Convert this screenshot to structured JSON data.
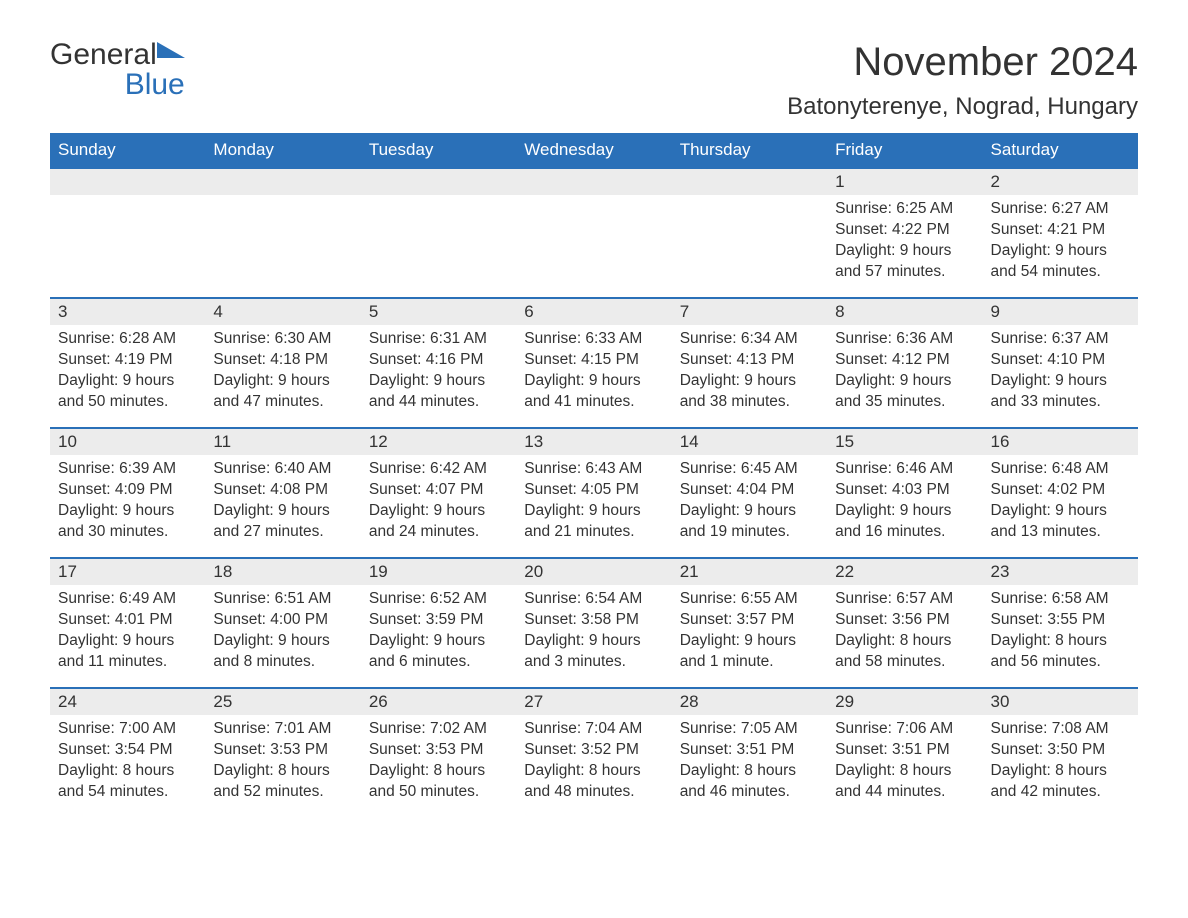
{
  "logo": {
    "text1": "General",
    "text2": "Blue",
    "triangle_color": "#2a70b8"
  },
  "title": "November 2024",
  "location": "Batonyterenye, Nograd, Hungary",
  "colors": {
    "header_bg": "#2a70b8",
    "header_text": "#ffffff",
    "daynum_bg": "#ececec",
    "body_text": "#333333",
    "row_border": "#2a70b8",
    "page_bg": "#ffffff"
  },
  "type": "calendar-table",
  "typography": {
    "title_fontsize": 40,
    "location_fontsize": 24,
    "dayheader_fontsize": 17,
    "daynum_fontsize": 17,
    "body_fontsize": 15.5,
    "font_family": "Arial"
  },
  "day_headers": [
    "Sunday",
    "Monday",
    "Tuesday",
    "Wednesday",
    "Thursday",
    "Friday",
    "Saturday"
  ],
  "weeks": [
    [
      {
        "blank": true
      },
      {
        "blank": true
      },
      {
        "blank": true
      },
      {
        "blank": true
      },
      {
        "blank": true
      },
      {
        "day": "1",
        "sunrise": "Sunrise: 6:25 AM",
        "sunset": "Sunset: 4:22 PM",
        "daylight1": "Daylight: 9 hours",
        "daylight2": "and 57 minutes."
      },
      {
        "day": "2",
        "sunrise": "Sunrise: 6:27 AM",
        "sunset": "Sunset: 4:21 PM",
        "daylight1": "Daylight: 9 hours",
        "daylight2": "and 54 minutes."
      }
    ],
    [
      {
        "day": "3",
        "sunrise": "Sunrise: 6:28 AM",
        "sunset": "Sunset: 4:19 PM",
        "daylight1": "Daylight: 9 hours",
        "daylight2": "and 50 minutes."
      },
      {
        "day": "4",
        "sunrise": "Sunrise: 6:30 AM",
        "sunset": "Sunset: 4:18 PM",
        "daylight1": "Daylight: 9 hours",
        "daylight2": "and 47 minutes."
      },
      {
        "day": "5",
        "sunrise": "Sunrise: 6:31 AM",
        "sunset": "Sunset: 4:16 PM",
        "daylight1": "Daylight: 9 hours",
        "daylight2": "and 44 minutes."
      },
      {
        "day": "6",
        "sunrise": "Sunrise: 6:33 AM",
        "sunset": "Sunset: 4:15 PM",
        "daylight1": "Daylight: 9 hours",
        "daylight2": "and 41 minutes."
      },
      {
        "day": "7",
        "sunrise": "Sunrise: 6:34 AM",
        "sunset": "Sunset: 4:13 PM",
        "daylight1": "Daylight: 9 hours",
        "daylight2": "and 38 minutes."
      },
      {
        "day": "8",
        "sunrise": "Sunrise: 6:36 AM",
        "sunset": "Sunset: 4:12 PM",
        "daylight1": "Daylight: 9 hours",
        "daylight2": "and 35 minutes."
      },
      {
        "day": "9",
        "sunrise": "Sunrise: 6:37 AM",
        "sunset": "Sunset: 4:10 PM",
        "daylight1": "Daylight: 9 hours",
        "daylight2": "and 33 minutes."
      }
    ],
    [
      {
        "day": "10",
        "sunrise": "Sunrise: 6:39 AM",
        "sunset": "Sunset: 4:09 PM",
        "daylight1": "Daylight: 9 hours",
        "daylight2": "and 30 minutes."
      },
      {
        "day": "11",
        "sunrise": "Sunrise: 6:40 AM",
        "sunset": "Sunset: 4:08 PM",
        "daylight1": "Daylight: 9 hours",
        "daylight2": "and 27 minutes."
      },
      {
        "day": "12",
        "sunrise": "Sunrise: 6:42 AM",
        "sunset": "Sunset: 4:07 PM",
        "daylight1": "Daylight: 9 hours",
        "daylight2": "and 24 minutes."
      },
      {
        "day": "13",
        "sunrise": "Sunrise: 6:43 AM",
        "sunset": "Sunset: 4:05 PM",
        "daylight1": "Daylight: 9 hours",
        "daylight2": "and 21 minutes."
      },
      {
        "day": "14",
        "sunrise": "Sunrise: 6:45 AM",
        "sunset": "Sunset: 4:04 PM",
        "daylight1": "Daylight: 9 hours",
        "daylight2": "and 19 minutes."
      },
      {
        "day": "15",
        "sunrise": "Sunrise: 6:46 AM",
        "sunset": "Sunset: 4:03 PM",
        "daylight1": "Daylight: 9 hours",
        "daylight2": "and 16 minutes."
      },
      {
        "day": "16",
        "sunrise": "Sunrise: 6:48 AM",
        "sunset": "Sunset: 4:02 PM",
        "daylight1": "Daylight: 9 hours",
        "daylight2": "and 13 minutes."
      }
    ],
    [
      {
        "day": "17",
        "sunrise": "Sunrise: 6:49 AM",
        "sunset": "Sunset: 4:01 PM",
        "daylight1": "Daylight: 9 hours",
        "daylight2": "and 11 minutes."
      },
      {
        "day": "18",
        "sunrise": "Sunrise: 6:51 AM",
        "sunset": "Sunset: 4:00 PM",
        "daylight1": "Daylight: 9 hours",
        "daylight2": "and 8 minutes."
      },
      {
        "day": "19",
        "sunrise": "Sunrise: 6:52 AM",
        "sunset": "Sunset: 3:59 PM",
        "daylight1": "Daylight: 9 hours",
        "daylight2": "and 6 minutes."
      },
      {
        "day": "20",
        "sunrise": "Sunrise: 6:54 AM",
        "sunset": "Sunset: 3:58 PM",
        "daylight1": "Daylight: 9 hours",
        "daylight2": "and 3 minutes."
      },
      {
        "day": "21",
        "sunrise": "Sunrise: 6:55 AM",
        "sunset": "Sunset: 3:57 PM",
        "daylight1": "Daylight: 9 hours",
        "daylight2": "and 1 minute."
      },
      {
        "day": "22",
        "sunrise": "Sunrise: 6:57 AM",
        "sunset": "Sunset: 3:56 PM",
        "daylight1": "Daylight: 8 hours",
        "daylight2": "and 58 minutes."
      },
      {
        "day": "23",
        "sunrise": "Sunrise: 6:58 AM",
        "sunset": "Sunset: 3:55 PM",
        "daylight1": "Daylight: 8 hours",
        "daylight2": "and 56 minutes."
      }
    ],
    [
      {
        "day": "24",
        "sunrise": "Sunrise: 7:00 AM",
        "sunset": "Sunset: 3:54 PM",
        "daylight1": "Daylight: 8 hours",
        "daylight2": "and 54 minutes."
      },
      {
        "day": "25",
        "sunrise": "Sunrise: 7:01 AM",
        "sunset": "Sunset: 3:53 PM",
        "daylight1": "Daylight: 8 hours",
        "daylight2": "and 52 minutes."
      },
      {
        "day": "26",
        "sunrise": "Sunrise: 7:02 AM",
        "sunset": "Sunset: 3:53 PM",
        "daylight1": "Daylight: 8 hours",
        "daylight2": "and 50 minutes."
      },
      {
        "day": "27",
        "sunrise": "Sunrise: 7:04 AM",
        "sunset": "Sunset: 3:52 PM",
        "daylight1": "Daylight: 8 hours",
        "daylight2": "and 48 minutes."
      },
      {
        "day": "28",
        "sunrise": "Sunrise: 7:05 AM",
        "sunset": "Sunset: 3:51 PM",
        "daylight1": "Daylight: 8 hours",
        "daylight2": "and 46 minutes."
      },
      {
        "day": "29",
        "sunrise": "Sunrise: 7:06 AM",
        "sunset": "Sunset: 3:51 PM",
        "daylight1": "Daylight: 8 hours",
        "daylight2": "and 44 minutes."
      },
      {
        "day": "30",
        "sunrise": "Sunrise: 7:08 AM",
        "sunset": "Sunset: 3:50 PM",
        "daylight1": "Daylight: 8 hours",
        "daylight2": "and 42 minutes."
      }
    ]
  ]
}
